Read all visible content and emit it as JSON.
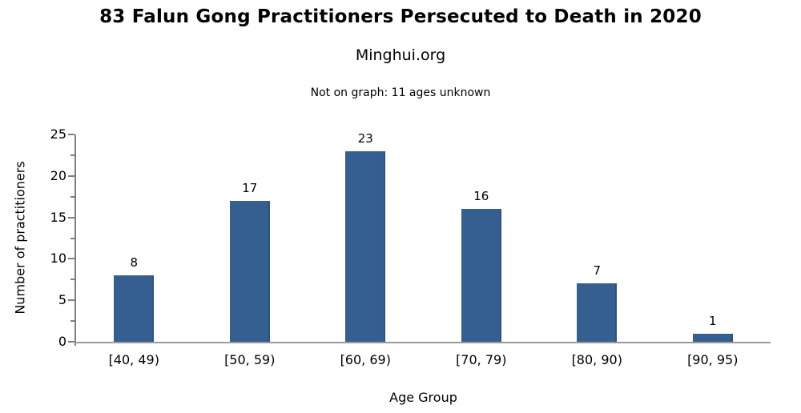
{
  "chart_data": {
    "type": "bar",
    "title": "83 Falun Gong Practitioners Persecuted to Death in 2020",
    "subtitle": "Minghui.org",
    "note": "Not on graph: 11 ages unknown",
    "categories": [
      "[40, 49)",
      "[50, 59)",
      "[60, 69)",
      "[70, 79)",
      "[80, 90)",
      "[90, 95)"
    ],
    "values": [
      8,
      17,
      23,
      16,
      7,
      1
    ],
    "xlabel": "Age Group",
    "ylabel": "Number of practitioners",
    "ylim": [
      0,
      25
    ],
    "yticks": [
      0,
      5,
      10,
      15,
      20,
      25
    ],
    "minor_ticks": [
      2.5,
      7.5,
      12.5,
      17.5,
      22.5
    ],
    "grid": false,
    "legend_position": "none",
    "data_labels": true,
    "colors": {
      "bar_fill": "#365F91",
      "bar_edge": "#2d5280",
      "y_axis": "#7f7f7f",
      "x_axis": "#9a9a9a",
      "text": "#000000",
      "background": "#ffffff"
    }
  }
}
